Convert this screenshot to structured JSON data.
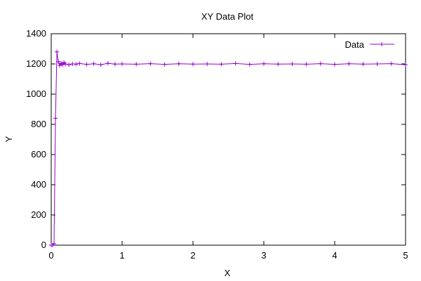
{
  "chart_data": {
    "type": "line",
    "title": "XY Data Plot",
    "xlabel": "X",
    "ylabel": "Y",
    "xlim": [
      0,
      5
    ],
    "ylim": [
      0,
      1400
    ],
    "xticks": [
      0,
      1,
      2,
      3,
      4,
      5
    ],
    "yticks": [
      0,
      200,
      400,
      600,
      800,
      1000,
      1200,
      1400
    ],
    "grid": false,
    "legend": "top-right",
    "series": [
      {
        "name": "Data",
        "color": "#9400d3",
        "marker": "plus",
        "x": [
          0,
          0.02,
          0.04,
          0.06,
          0.08,
          0.1,
          0.12,
          0.14,
          0.16,
          0.18,
          0.2,
          0.25,
          0.3,
          0.35,
          0.4,
          0.5,
          0.6,
          0.7,
          0.8,
          0.9,
          1.0,
          1.2,
          1.4,
          1.6,
          1.8,
          2.0,
          2.2,
          2.4,
          2.6,
          2.8,
          3.0,
          3.2,
          3.4,
          3.6,
          3.8,
          4.0,
          4.2,
          4.4,
          4.6,
          4.8,
          5.0
        ],
        "y": [
          0,
          0,
          10,
          840,
          1280,
          1215,
          1190,
          1205,
          1195,
          1210,
          1200,
          1195,
          1200,
          1198,
          1203,
          1197,
          1201,
          1195,
          1204,
          1199,
          1200,
          1198,
          1202,
          1197,
          1201,
          1199,
          1200,
          1198,
          1203,
          1197,
          1201,
          1199,
          1200,
          1198,
          1202,
          1197,
          1201,
          1199,
          1200,
          1202,
          1195
        ]
      }
    ]
  }
}
